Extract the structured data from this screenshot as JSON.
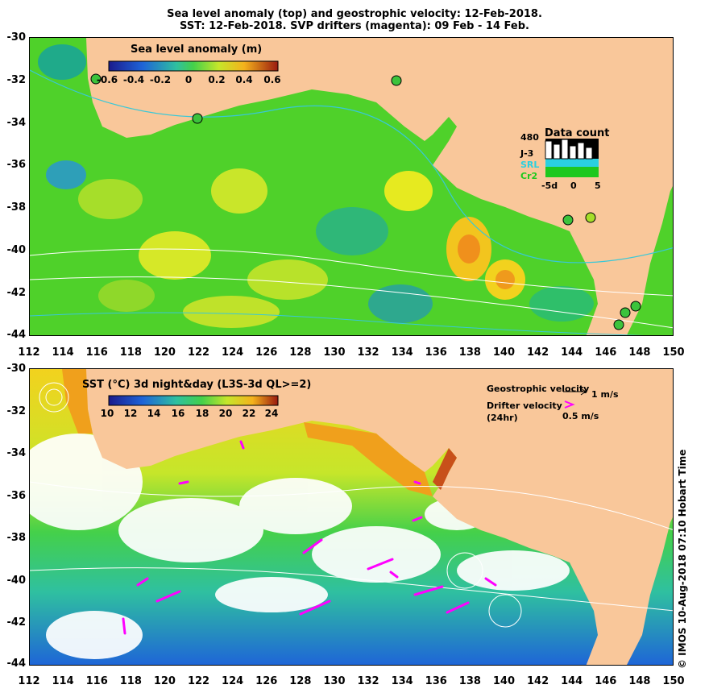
{
  "title": {
    "line1": "Sea level anomaly (top) and geostrophic velocity: 12-Feb-2018.",
    "line2": "SST: 12-Feb-2018. SVP drifters (magenta): 09 Feb - 14 Feb."
  },
  "axes": {
    "x_ticks": [
      "112",
      "114",
      "116",
      "118",
      "120",
      "122",
      "124",
      "126",
      "128",
      "130",
      "132",
      "134",
      "136",
      "138",
      "140",
      "142",
      "144",
      "146",
      "148",
      "150"
    ],
    "y_ticks": [
      "-30",
      "-32",
      "-34",
      "-36",
      "-38",
      "-40",
      "-42",
      "-44"
    ],
    "lon_range": [
      112,
      150
    ],
    "lat_range": [
      -30,
      -44
    ]
  },
  "top_panel": {
    "colorbar_title": "Sea level anomaly (m)",
    "colorbar_ticks": [
      "-0.6",
      "-0.4",
      "-0.2",
      "0",
      "0.2",
      "0.4",
      "0.6"
    ],
    "data_count": {
      "title": "Data count",
      "max_label": "480",
      "series": [
        "J-3",
        "SRL",
        "Cr2"
      ],
      "series_colors": [
        "#000000",
        "#2ad0e0",
        "#1ec81e"
      ],
      "x_labels": [
        "-5d",
        "0",
        "5"
      ]
    }
  },
  "bottom_panel": {
    "colorbar_title": "SST (°C) 3d night&day (L3S-3d QL>=2)",
    "colorbar_ticks": [
      "10",
      "12",
      "14",
      "16",
      "18",
      "20",
      "22",
      "24"
    ],
    "geo_velocity_label": "Geostrophic velocity",
    "geo_velocity_scale": "1 m/s",
    "drifter_label": "Drifter velocity",
    "drifter_sublabel": "(24hr)",
    "drifter_scale": "0.5 m/s"
  },
  "credit": "© IMOS 10-Aug-2018 07:10 Hobart Time",
  "colors": {
    "land": "#f9c79a",
    "sla_base": "#4fd12a",
    "drifter": "#ff00ff",
    "contour": "#ffffff",
    "isobath": "#38c8d8"
  }
}
